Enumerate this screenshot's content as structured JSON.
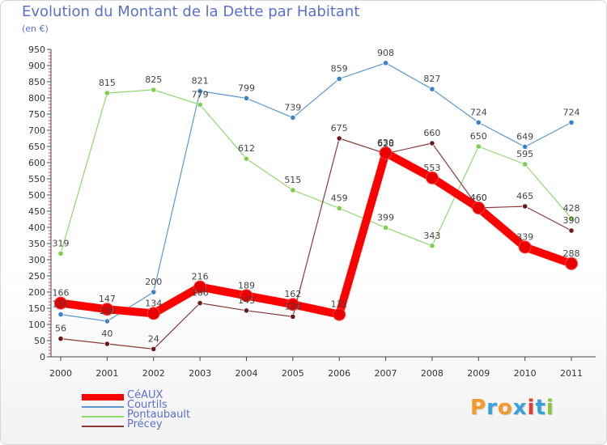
{
  "title": "Evolution du Montant de la Dette par Habitant",
  "subtitle": "(en €)",
  "logo": {
    "text": "Proxiti",
    "colors": [
      "#f39a2a",
      "#3aa0d8",
      "#f39a2a",
      "#3aa0d8",
      "#e63c2e",
      "#3aa0d8",
      "#8cc63f"
    ]
  },
  "chart_data": {
    "type": "line",
    "x": [
      "2000",
      "2001",
      "2002",
      "2003",
      "2004",
      "2005",
      "2006",
      "2007",
      "2008",
      "2009",
      "2010",
      "2011"
    ],
    "ylim": [
      0,
      950
    ],
    "yticks": [
      0,
      50,
      100,
      150,
      200,
      250,
      300,
      350,
      400,
      450,
      500,
      550,
      600,
      650,
      700,
      750,
      800,
      850,
      900,
      950
    ],
    "grid": false,
    "legend_position": "bottom-left",
    "series": [
      {
        "name": "Courtils",
        "color": "#5a96d0",
        "point_color": "#3c82c8",
        "values": [
          131,
          110,
          200,
          821,
          799,
          739,
          859,
          908,
          827,
          724,
          649,
          724
        ],
        "labels": [
          "131",
          "110",
          "200",
          "821",
          "799",
          "739",
          "859",
          "908",
          "827",
          "724",
          "649",
          "724"
        ]
      },
      {
        "name": "Pontaubault",
        "color": "#90d870",
        "point_color": "#7ad04a",
        "values": [
          319,
          815,
          825,
          779,
          612,
          515,
          459,
          399,
          343,
          650,
          595,
          428
        ],
        "labels": [
          "319",
          "815",
          "825",
          "779",
          "612",
          "515",
          "459",
          "399",
          "343",
          "650",
          "595",
          "428"
        ]
      },
      {
        "name": "Précey",
        "color": "#8a3a3a",
        "point_color": "#6a1a1a",
        "values": [
          56,
          40,
          24,
          166,
          143,
          124,
          675,
          628,
          660,
          460,
          465,
          390
        ],
        "labels": [
          "56",
          "40",
          "24",
          "166",
          "143",
          "124",
          "675",
          "628",
          "660",
          "460",
          "465",
          "390"
        ]
      },
      {
        "name": "CéAUX",
        "color": "#ff0000",
        "point_color": "#e80000",
        "values": [
          166,
          147,
          134,
          216,
          189,
          162,
          131,
          630,
          553,
          460,
          339,
          288
        ],
        "labels": [
          "166",
          "147",
          "134",
          "216",
          "189",
          "162",
          "131",
          "630",
          "553",
          "460",
          "339",
          "288"
        ]
      }
    ],
    "legend": [
      {
        "name": "CéAUX",
        "color": "#ff0000"
      },
      {
        "name": "Courtils",
        "color": "#5a96d0"
      },
      {
        "name": "Pontaubault",
        "color": "#90d870"
      },
      {
        "name": "Précey",
        "color": "#8a3a3a"
      }
    ]
  }
}
